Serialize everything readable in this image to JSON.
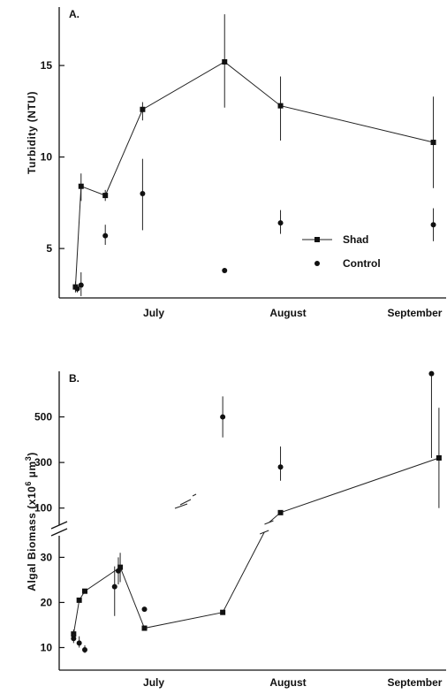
{
  "chart_data": [
    {
      "type": "line",
      "panel": "A.",
      "ylabel": "Turbidity (NTU)",
      "yticks": [
        5,
        10,
        15
      ],
      "ylim": [
        2.3,
        18
      ],
      "x_unit": "day of season",
      "xlim": [
        0,
        100
      ],
      "month_labels": [
        {
          "label": "July",
          "x": 23
        },
        {
          "label": "August",
          "x": 59
        },
        {
          "label": "September",
          "x": 93
        }
      ],
      "legend": {
        "placement": "lower-right",
        "entries": [
          "Shad",
          "Control"
        ]
      },
      "series": [
        {
          "name": "Shad",
          "marker": "square",
          "connected": true,
          "points": [
            {
              "x": 2,
              "y": 2.9,
              "lo": 2.6,
              "hi": 3.2
            },
            {
              "x": 3.5,
              "y": 8.4,
              "lo": 7.6,
              "hi": 9.1
            },
            {
              "x": 10,
              "y": 7.9,
              "lo": 7.6,
              "hi": 8.2
            },
            {
              "x": 20,
              "y": 12.6,
              "lo": 12.0,
              "hi": 13.0
            },
            {
              "x": 42,
              "y": 15.2,
              "lo": 12.7,
              "hi": 17.8
            },
            {
              "x": 57,
              "y": 12.8,
              "lo": 10.9,
              "hi": 14.4
            },
            {
              "x": 98,
              "y": 10.8,
              "lo": 8.3,
              "hi": 13.3
            }
          ]
        },
        {
          "name": "Control",
          "marker": "circle",
          "connected": false,
          "points": [
            {
              "x": 2.5,
              "y": 2.8,
              "lo": 2.6,
              "hi": 3.0
            },
            {
              "x": 3.5,
              "y": 3.0,
              "lo": 2.4,
              "hi": 3.7
            },
            {
              "x": 10,
              "y": 5.7,
              "lo": 5.2,
              "hi": 6.3
            },
            {
              "x": 20,
              "y": 8.0,
              "lo": 6.0,
              "hi": 9.9
            },
            {
              "x": 42,
              "y": 3.8,
              "lo": 3.8,
              "hi": 3.8
            },
            {
              "x": 57,
              "y": 6.4,
              "lo": 5.8,
              "hi": 7.1
            },
            {
              "x": 98,
              "y": 6.3,
              "lo": 5.4,
              "hi": 7.2
            }
          ]
        }
      ]
    },
    {
      "type": "line",
      "panel": "B.",
      "ylabel_parts": [
        "Algal Biomass (x10",
        "6",
        " μm",
        "3",
        ")"
      ],
      "axis_break": true,
      "lower_yticks": [
        10,
        20,
        30
      ],
      "lower_ylim": [
        5,
        34
      ],
      "upper_yticks": [
        100,
        300,
        500
      ],
      "upper_ylim": [
        60,
        700
      ],
      "x_unit": "day of season",
      "xlim": [
        0,
        100
      ],
      "month_labels": [
        {
          "label": "July",
          "x": 23
        },
        {
          "label": "August",
          "x": 59
        },
        {
          "label": "September",
          "x": 93
        }
      ],
      "series": [
        {
          "name": "Shad",
          "marker": "square",
          "connected": true,
          "points": [
            {
              "x": 1.5,
              "seg": "lower",
              "y": 13.0,
              "lo": 12.0,
              "hi": 14.0
            },
            {
              "x": 3,
              "seg": "lower",
              "y": 20.5,
              "lo": 20.5,
              "hi": 20.5
            },
            {
              "x": 4.5,
              "seg": "lower",
              "y": 22.5,
              "lo": 22.5,
              "hi": 22.5
            },
            {
              "x": 14,
              "seg": "lower",
              "y": 27.8,
              "lo": 24.5,
              "hi": 31.0
            },
            {
              "x": 20.5,
              "seg": "lower",
              "y": 14.3,
              "lo": 14.3,
              "hi": 14.3
            },
            {
              "x": 41.5,
              "seg": "lower",
              "y": 17.8,
              "lo": 17.8,
              "hi": 17.8
            },
            {
              "x": 57,
              "seg": "upper",
              "y": 80,
              "lo": 72,
              "hi": 88
            },
            {
              "x": 99.5,
              "seg": "upper",
              "y": 320,
              "lo": 100,
              "hi": 540
            }
          ]
        },
        {
          "name": "Control",
          "marker": "circle",
          "connected": false,
          "points": [
            {
              "x": 1.5,
              "seg": "lower",
              "y": 12.0,
              "lo": 11.0,
              "hi": 13.0
            },
            {
              "x": 3,
              "seg": "lower",
              "y": 11.0,
              "lo": 10.0,
              "hi": 12.5
            },
            {
              "x": 4.5,
              "seg": "lower",
              "y": 9.5,
              "lo": 8.8,
              "hi": 10.5
            },
            {
              "x": 12.5,
              "seg": "lower",
              "y": 23.5,
              "lo": 17.0,
              "hi": 28.0
            },
            {
              "x": 13.5,
              "seg": "lower",
              "y": 27.0,
              "lo": 24.0,
              "hi": 30.0
            },
            {
              "x": 20.5,
              "seg": "lower",
              "y": 18.5,
              "lo": 18.5,
              "hi": 18.5
            },
            {
              "x": 41.5,
              "seg": "upper",
              "y": 500,
              "lo": 410,
              "hi": 590
            },
            {
              "x": 57,
              "seg": "upper",
              "y": 280,
              "lo": 220,
              "hi": 370
            },
            {
              "x": 97.5,
              "seg": "upper",
              "y": 690,
              "lo": 320,
              "hi": 690
            }
          ]
        }
      ]
    }
  ]
}
